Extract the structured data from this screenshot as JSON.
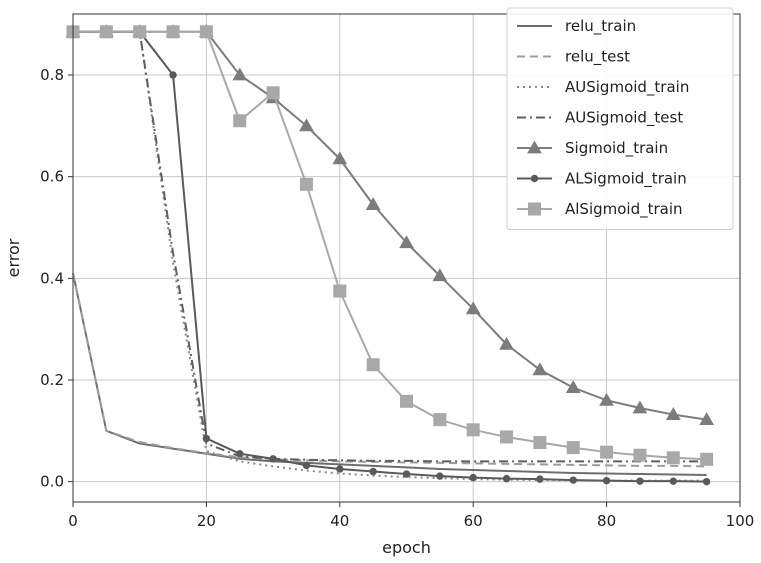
{
  "chart_data": {
    "type": "line",
    "title": "",
    "xlabel": "epoch",
    "ylabel": "error",
    "xlim": [
      0,
      100
    ],
    "ylim": [
      -0.04,
      0.92
    ],
    "xticks": [
      0,
      20,
      40,
      60,
      80,
      100
    ],
    "yticks": [
      0.0,
      0.2,
      0.4,
      0.6,
      0.8
    ],
    "xtick_labels": [
      "0",
      "20",
      "40",
      "60",
      "80",
      "100"
    ],
    "ytick_labels": [
      "0.0",
      "0.2",
      "0.4",
      "0.6",
      "0.8"
    ],
    "grid": true,
    "legend_position": "top-right",
    "x": [
      0,
      5,
      10,
      15,
      20,
      25,
      30,
      35,
      40,
      45,
      50,
      55,
      60,
      65,
      70,
      75,
      80,
      85,
      90,
      95
    ],
    "series": [
      {
        "name": "relu_train",
        "color": "#6e6e6e",
        "dash": "solid",
        "marker": "none",
        "values": [
          0.41,
          0.1,
          0.075,
          0.065,
          0.055,
          0.045,
          0.04,
          0.037,
          0.034,
          0.031,
          0.028,
          0.025,
          0.023,
          0.021,
          0.019,
          0.017,
          0.016,
          0.015,
          0.014,
          0.013
        ]
      },
      {
        "name": "relu_test",
        "color": "#9c9c9c",
        "dash": "dashed",
        "marker": "none",
        "values": [
          0.41,
          0.1,
          0.078,
          0.066,
          0.056,
          0.048,
          0.044,
          0.042,
          0.04,
          0.039,
          0.038,
          0.037,
          0.036,
          0.035,
          0.034,
          0.033,
          0.032,
          0.031,
          0.031,
          0.03
        ]
      },
      {
        "name": "AUSigmoid_train",
        "color": "#8a8a8a",
        "dash": "dotted",
        "marker": "none",
        "values": [
          0.885,
          0.885,
          0.885,
          0.43,
          0.06,
          0.04,
          0.03,
          0.022,
          0.016,
          0.012,
          0.009,
          0.007,
          0.005,
          0.004,
          0.003,
          0.003,
          0.002,
          0.002,
          0.002,
          0.002
        ]
      },
      {
        "name": "AUSigmoid_test",
        "color": "#5e5e5e",
        "dash": "dashdot",
        "marker": "none",
        "values": [
          0.885,
          0.885,
          0.885,
          0.45,
          0.075,
          0.05,
          0.045,
          0.043,
          0.042,
          0.041,
          0.041,
          0.04,
          0.04,
          0.04,
          0.04,
          0.04,
          0.04,
          0.04,
          0.04,
          0.04
        ]
      },
      {
        "name": "Sigmoid_train",
        "color": "#7c7c7c",
        "dash": "solid",
        "marker": "triangle",
        "values": [
          0.885,
          0.885,
          0.885,
          0.885,
          0.885,
          0.8,
          0.755,
          0.7,
          0.635,
          0.545,
          0.47,
          0.405,
          0.34,
          0.27,
          0.22,
          0.185,
          0.16,
          0.145,
          0.132,
          0.122
        ]
      },
      {
        "name": "ALSigmoid_train",
        "color": "#5a5a5a",
        "dash": "solid",
        "marker": "circle",
        "values": [
          0.885,
          0.885,
          0.885,
          0.8,
          0.085,
          0.055,
          0.045,
          0.032,
          0.025,
          0.02,
          0.015,
          0.011,
          0.008,
          0.006,
          0.005,
          0.003,
          0.002,
          0.001,
          0.001,
          0.0
        ]
      },
      {
        "name": "AlSigmoid_train",
        "color": "#a8a8a8",
        "dash": "solid",
        "marker": "square",
        "values": [
          0.885,
          0.885,
          0.885,
          0.885,
          0.885,
          0.71,
          0.765,
          0.585,
          0.375,
          0.23,
          0.158,
          0.122,
          0.102,
          0.088,
          0.077,
          0.067,
          0.058,
          0.052,
          0.047,
          0.044
        ]
      }
    ]
  }
}
